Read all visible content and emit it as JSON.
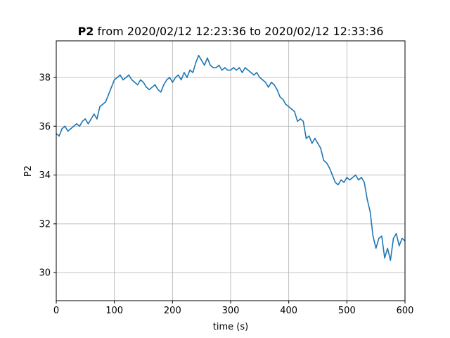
{
  "chart_data": {
    "type": "line",
    "title_bold": "P2",
    "title_rest": " from 2020/02/12 12:23:36 to 2020/02/12 12:33:36",
    "xlabel": "time (s)",
    "ylabel": "P2",
    "xlim": [
      0,
      600
    ],
    "ylim": [
      28.85,
      39.5
    ],
    "x_ticks": [
      0,
      100,
      200,
      300,
      400,
      500,
      600
    ],
    "y_ticks": [
      30,
      32,
      34,
      36,
      38
    ],
    "grid": true,
    "series_color": "#1f77b4",
    "series": [
      {
        "x": [
          0,
          5,
          10,
          15,
          20,
          25,
          30,
          35,
          40,
          45,
          50,
          55,
          60,
          65,
          70,
          75,
          80,
          85,
          90,
          95,
          100,
          105,
          110,
          115,
          120,
          125,
          130,
          135,
          140,
          145,
          150,
          155,
          160,
          165,
          170,
          175,
          180,
          185,
          190,
          195,
          200,
          205,
          210,
          215,
          220,
          225,
          230,
          235,
          240,
          245,
          250,
          255,
          260,
          265,
          270,
          275,
          280,
          285,
          290,
          295,
          300,
          305,
          310,
          315,
          320,
          325,
          330,
          335,
          340,
          345,
          350,
          355,
          360,
          365,
          370,
          375,
          380,
          385,
          390,
          395,
          400,
          405,
          410,
          415,
          420,
          425,
          430,
          435,
          440,
          445,
          450,
          455,
          460,
          465,
          470,
          475,
          480,
          485,
          490,
          495,
          500,
          505,
          510,
          515,
          520,
          525,
          530,
          535,
          540,
          545,
          550,
          555,
          560,
          565,
          570,
          575,
          580,
          585,
          590,
          595,
          600
        ],
        "values": [
          35.7,
          35.6,
          35.9,
          36.0,
          35.8,
          35.9,
          36.0,
          36.1,
          36.0,
          36.2,
          36.3,
          36.1,
          36.3,
          36.5,
          36.3,
          36.8,
          36.9,
          37.0,
          37.3,
          37.6,
          37.9,
          38.0,
          38.1,
          37.9,
          38.0,
          38.1,
          37.9,
          37.8,
          37.7,
          37.9,
          37.8,
          37.6,
          37.5,
          37.6,
          37.7,
          37.5,
          37.4,
          37.7,
          37.9,
          38.0,
          37.8,
          38.0,
          38.1,
          37.9,
          38.2,
          38.0,
          38.3,
          38.2,
          38.6,
          38.9,
          38.7,
          38.5,
          38.8,
          38.5,
          38.4,
          38.4,
          38.5,
          38.3,
          38.4,
          38.3,
          38.3,
          38.4,
          38.3,
          38.4,
          38.2,
          38.4,
          38.3,
          38.2,
          38.1,
          38.2,
          38.0,
          37.9,
          37.8,
          37.6,
          37.8,
          37.7,
          37.5,
          37.2,
          37.1,
          36.9,
          36.8,
          36.7,
          36.6,
          36.2,
          36.3,
          36.2,
          35.5,
          35.6,
          35.3,
          35.5,
          35.3,
          35.1,
          34.6,
          34.5,
          34.3,
          34.0,
          33.7,
          33.6,
          33.8,
          33.7,
          33.9,
          33.8,
          33.9,
          34.0,
          33.8,
          33.9,
          33.7,
          33.0,
          32.5,
          31.5,
          31.0,
          31.4,
          31.5,
          30.6,
          31.0,
          30.5,
          31.4,
          31.6,
          31.1,
          31.4,
          31.3
        ]
      }
    ]
  }
}
